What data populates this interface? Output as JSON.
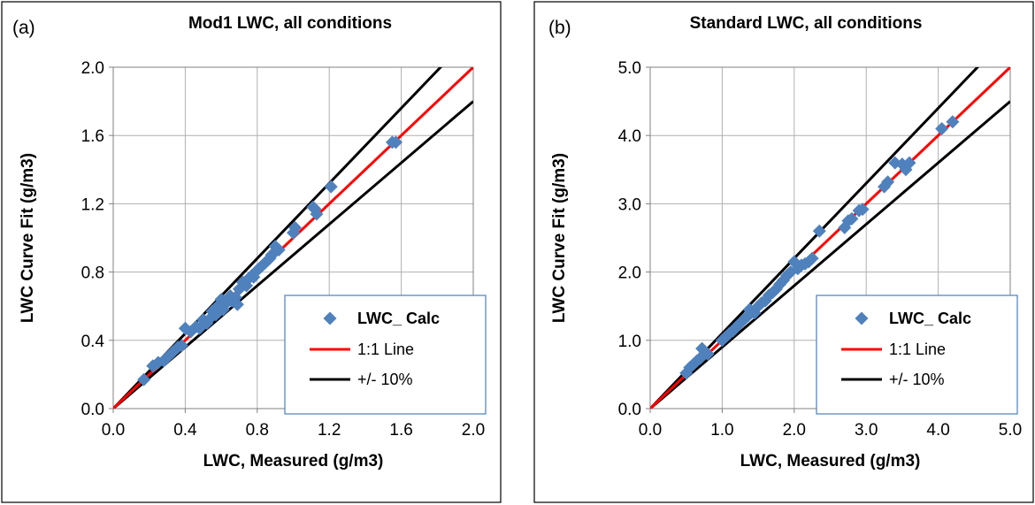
{
  "chart_data": [
    {
      "type": "scatter",
      "panel_label": "(a)",
      "title": "Mod1 LWC, all conditions",
      "xlabel": "LWC, Measured  (g/m3)",
      "ylabel": "LWC Curve Fit (g/m3)",
      "xlim": [
        0,
        2.0
      ],
      "ylim": [
        0,
        2.0
      ],
      "xticks": [
        "0.0",
        "0.4",
        "0.8",
        "1.2",
        "1.6",
        "2.0"
      ],
      "yticks": [
        "0.0",
        "0.4",
        "0.8",
        "1.2",
        "1.6",
        "2.0"
      ],
      "grid": true,
      "legend_position": "bottom-right",
      "series": [
        {
          "name": "LWC_ Calc",
          "kind": "points",
          "color": "#4f81bd",
          "points": [
            [
              0.17,
              0.17
            ],
            [
              0.22,
              0.25
            ],
            [
              0.25,
              0.27
            ],
            [
              0.28,
              0.28
            ],
            [
              0.3,
              0.3
            ],
            [
              0.33,
              0.33
            ],
            [
              0.36,
              0.36
            ],
            [
              0.38,
              0.37
            ],
            [
              0.4,
              0.47
            ],
            [
              0.43,
              0.45
            ],
            [
              0.46,
              0.48
            ],
            [
              0.48,
              0.47
            ],
            [
              0.5,
              0.52
            ],
            [
              0.52,
              0.5
            ],
            [
              0.54,
              0.53
            ],
            [
              0.55,
              0.57
            ],
            [
              0.57,
              0.55
            ],
            [
              0.58,
              0.6
            ],
            [
              0.6,
              0.64
            ],
            [
              0.61,
              0.58
            ],
            [
              0.63,
              0.62
            ],
            [
              0.65,
              0.66
            ],
            [
              0.66,
              0.63
            ],
            [
              0.68,
              0.65
            ],
            [
              0.69,
              0.61
            ],
            [
              0.7,
              0.7
            ],
            [
              0.72,
              0.74
            ],
            [
              0.74,
              0.72
            ],
            [
              0.75,
              0.76
            ],
            [
              0.77,
              0.78
            ],
            [
              0.78,
              0.77
            ],
            [
              0.8,
              0.81
            ],
            [
              0.82,
              0.83
            ],
            [
              0.84,
              0.85
            ],
            [
              0.85,
              0.86
            ],
            [
              0.87,
              0.88
            ],
            [
              0.88,
              0.9
            ],
            [
              0.9,
              0.92
            ],
            [
              0.9,
              0.95
            ],
            [
              0.92,
              0.93
            ],
            [
              1.0,
              1.03
            ],
            [
              1.01,
              1.06
            ],
            [
              1.11,
              1.18
            ],
            [
              1.12,
              1.17
            ],
            [
              1.13,
              1.14
            ],
            [
              1.21,
              1.3
            ],
            [
              1.55,
              1.56
            ],
            [
              1.57,
              1.56
            ]
          ]
        },
        {
          "name": "1:1 Line",
          "kind": "line",
          "color": "#ff0000",
          "slope": 1.0
        },
        {
          "name": "+/- 10%",
          "kind": "line",
          "color": "#000000",
          "slopes": [
            1.1,
            0.9
          ]
        }
      ]
    },
    {
      "type": "scatter",
      "panel_label": "(b)",
      "title": "Standard LWC, all conditions",
      "xlabel": "LWC, Measured  (g/m3)",
      "ylabel": "LWC  Curve Fit (g/m3)",
      "xlim": [
        0,
        5.0
      ],
      "ylim": [
        0,
        5.0
      ],
      "xticks": [
        "0.0",
        "1.0",
        "2.0",
        "3.0",
        "4.0",
        "5.0"
      ],
      "yticks": [
        "0.0",
        "1.0",
        "2.0",
        "3.0",
        "4.0",
        "5.0"
      ],
      "grid": true,
      "legend_position": "bottom-right",
      "series": [
        {
          "name": "LWC_ Calc",
          "kind": "points",
          "color": "#4f81bd",
          "points": [
            [
              0.5,
              0.52
            ],
            [
              0.55,
              0.6
            ],
            [
              0.6,
              0.65
            ],
            [
              0.65,
              0.7
            ],
            [
              0.7,
              0.74
            ],
            [
              0.72,
              0.88
            ],
            [
              0.75,
              0.8
            ],
            [
              0.8,
              0.8
            ],
            [
              1.0,
              1.0
            ],
            [
              1.05,
              1.05
            ],
            [
              1.1,
              1.1
            ],
            [
              1.15,
              1.14
            ],
            [
              1.2,
              1.2
            ],
            [
              1.25,
              1.25
            ],
            [
              1.3,
              1.3
            ],
            [
              1.35,
              1.35
            ],
            [
              1.38,
              1.45
            ],
            [
              1.4,
              1.4
            ],
            [
              1.45,
              1.4
            ],
            [
              1.5,
              1.5
            ],
            [
              1.55,
              1.55
            ],
            [
              1.6,
              1.58
            ],
            [
              1.65,
              1.66
            ],
            [
              1.7,
              1.7
            ],
            [
              1.75,
              1.75
            ],
            [
              1.8,
              1.82
            ],
            [
              1.85,
              1.88
            ],
            [
              1.9,
              1.95
            ],
            [
              1.95,
              2.0
            ],
            [
              2.0,
              2.15
            ],
            [
              2.05,
              2.05
            ],
            [
              2.1,
              2.1
            ],
            [
              2.15,
              2.12
            ],
            [
              2.2,
              2.15
            ],
            [
              2.25,
              2.2
            ],
            [
              2.35,
              2.6
            ],
            [
              2.7,
              2.65
            ],
            [
              2.75,
              2.75
            ],
            [
              2.8,
              2.78
            ],
            [
              2.9,
              2.9
            ],
            [
              2.95,
              2.92
            ],
            [
              3.25,
              3.25
            ],
            [
              3.3,
              3.32
            ],
            [
              3.4,
              3.6
            ],
            [
              3.5,
              3.58
            ],
            [
              3.55,
              3.5
            ],
            [
              3.6,
              3.6
            ],
            [
              4.05,
              4.1
            ],
            [
              4.2,
              4.2
            ]
          ]
        },
        {
          "name": "1:1 Line",
          "kind": "line",
          "color": "#ff0000",
          "slope": 1.0
        },
        {
          "name": "+/- 10%",
          "kind": "line",
          "color": "#000000",
          "slopes": [
            1.1,
            0.9
          ]
        }
      ]
    }
  ]
}
